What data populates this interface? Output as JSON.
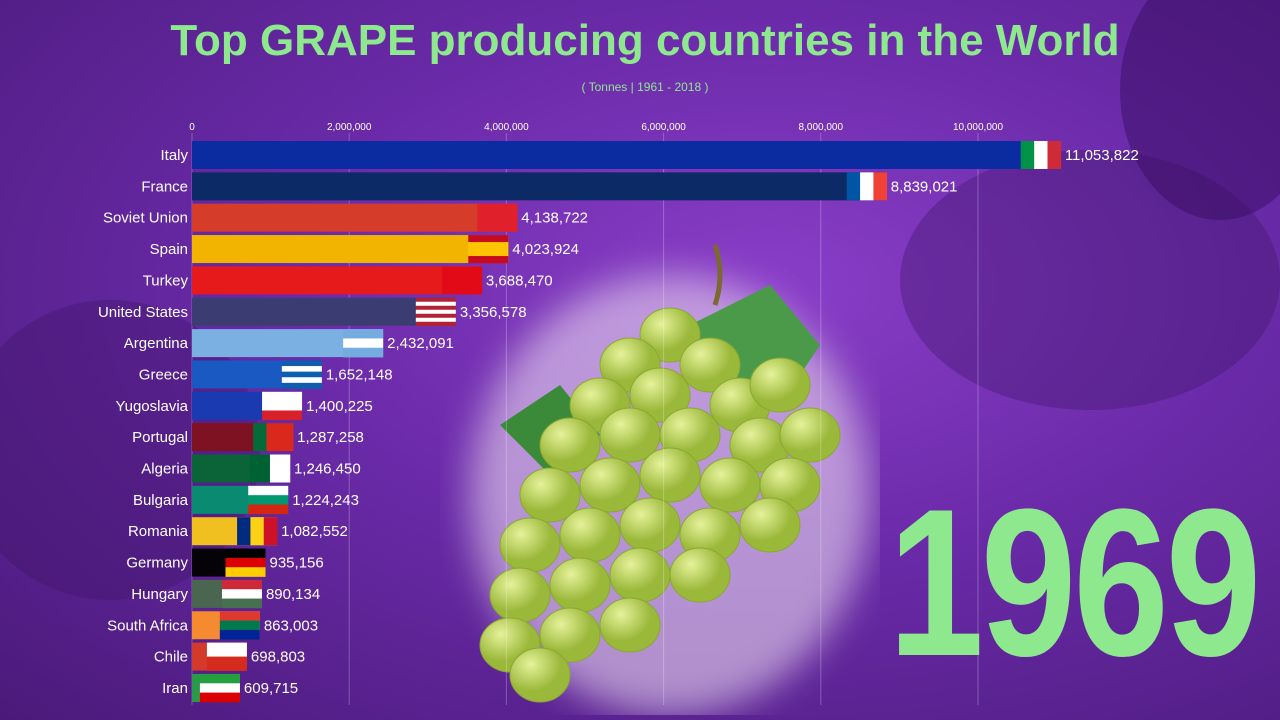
{
  "title": "Top GRAPE producing countries in the World",
  "subtitle": "( Tonnes | 1961 - 2018 )",
  "year": "1969",
  "chart_data": {
    "type": "bar",
    "orientation": "horizontal",
    "title": "Top GRAPE producing countries in the World",
    "subtitle": "( Tonnes | 1961 - 2018 )",
    "xlim": [
      0,
      11500000
    ],
    "ticks": [
      0,
      2000000,
      4000000,
      6000000,
      8000000,
      10000000
    ],
    "tick_labels": [
      "0",
      "2,000,000",
      "4,000,000",
      "6,000,000",
      "8,000,000",
      "10,000,000"
    ],
    "grid": true,
    "categories": [
      "Italy",
      "France",
      "Soviet Union",
      "Spain",
      "Turkey",
      "United States",
      "Argentina",
      "Greece",
      "Yugoslavia",
      "Portugal",
      "Algeria",
      "Bulgaria",
      "Romania",
      "Germany",
      "Hungary",
      "South Africa",
      "Chile",
      "Iran"
    ],
    "values": [
      11053822,
      8839021,
      4138722,
      4023924,
      3688470,
      3356578,
      2432091,
      1652148,
      1400225,
      1287258,
      1246450,
      1224243,
      1082552,
      935156,
      890134,
      863003,
      698803,
      609715
    ],
    "value_labels": [
      "11,053,822",
      "8,839,021",
      "4,138,722",
      "4,023,924",
      "3,688,470",
      "3,356,578",
      "2,432,091",
      "1,652,148",
      "1,400,225",
      "1,287,258",
      "1,246,450",
      "1,224,243",
      "1,082,552",
      "935,156",
      "890,134",
      "863,003",
      "698,803",
      "609,715"
    ],
    "colors": [
      "#0b2ca0",
      "#0c2b66",
      "#d63c2a",
      "#f2b400",
      "#e61a1a",
      "#3b3d72",
      "#7bb0e2",
      "#1b59c2",
      "#1a3ab2",
      "#7f1222",
      "#0b6338",
      "#0b8a72",
      "#f0c020",
      "#050208",
      "#4a6650",
      "#f58a30",
      "#d43a2a",
      "#2a9a4a"
    ],
    "flags": [
      {
        "dir": "v",
        "stripes": [
          "#009246",
          "#ffffff",
          "#ce2b37"
        ]
      },
      {
        "dir": "v",
        "stripes": [
          "#0055a4",
          "#ffffff",
          "#ef4135"
        ]
      },
      {
        "dir": "v",
        "stripes": [
          "#e0202a"
        ]
      },
      {
        "dir": "h",
        "stripes": [
          "#c60b1e",
          "#ffc400",
          "#ffc400",
          "#c60b1e"
        ]
      },
      {
        "dir": "v",
        "stripes": [
          "#e30a17"
        ]
      },
      {
        "dir": "h",
        "stripes": [
          "#b22234",
          "#ffffff",
          "#b22234",
          "#ffffff",
          "#b22234",
          "#ffffff",
          "#b22234"
        ]
      },
      {
        "dir": "h",
        "stripes": [
          "#74acdf",
          "#ffffff",
          "#74acdf"
        ]
      },
      {
        "dir": "h",
        "stripes": [
          "#0d5eaf",
          "#ffffff",
          "#0d5eaf",
          "#ffffff",
          "#0d5eaf"
        ]
      },
      {
        "dir": "h",
        "stripes": [
          "#ffffff",
          "#ffffff",
          "#d6202a"
        ]
      },
      {
        "dir": "v",
        "stripes": [
          "#046a38",
          "#da291c",
          "#da291c"
        ]
      },
      {
        "dir": "v",
        "stripes": [
          "#006233",
          "#ffffff"
        ]
      },
      {
        "dir": "h",
        "stripes": [
          "#ffffff",
          "#00966e",
          "#d62612"
        ]
      },
      {
        "dir": "v",
        "stripes": [
          "#002b7f",
          "#fcd116",
          "#ce1126"
        ]
      },
      {
        "dir": "h",
        "stripes": [
          "#000000",
          "#dd0000",
          "#ffce00"
        ]
      },
      {
        "dir": "h",
        "stripes": [
          "#ce2939",
          "#ffffff",
          "#477050"
        ]
      },
      {
        "dir": "h",
        "stripes": [
          "#de3831",
          "#007a4d",
          "#002395"
        ]
      },
      {
        "dir": "h",
        "stripes": [
          "#ffffff",
          "#d52b1e"
        ]
      },
      {
        "dir": "h",
        "stripes": [
          "#239f40",
          "#ffffff",
          "#da0000"
        ]
      }
    ]
  }
}
